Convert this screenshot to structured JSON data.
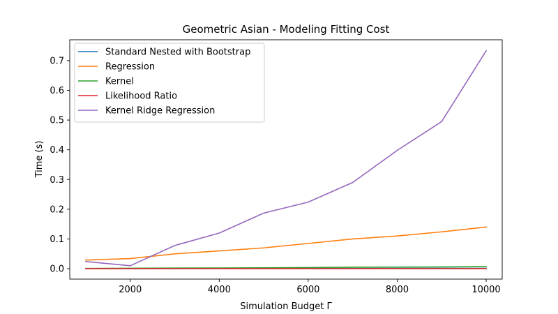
{
  "chart_data": {
    "type": "line",
    "title": "Geometric Asian - Modeling Fitting Cost",
    "xlabel": "Simulation Budget Γ",
    "ylabel": "Time (s)",
    "xlim": [
      640,
      10360
    ],
    "ylim": [
      -0.035,
      0.77
    ],
    "xticks": [
      2000,
      4000,
      6000,
      8000,
      10000
    ],
    "yticks": [
      0.0,
      0.1,
      0.2,
      0.3,
      0.4,
      0.5,
      0.6,
      0.7
    ],
    "xtick_labels": [
      "2000",
      "4000",
      "6000",
      "8000",
      "10000"
    ],
    "ytick_labels": [
      "0.0",
      "0.1",
      "0.2",
      "0.3",
      "0.4",
      "0.5",
      "0.6",
      "0.7"
    ],
    "grid": false,
    "legend_position": "top-left",
    "x": [
      1000,
      2000,
      3000,
      4000,
      5000,
      6000,
      7000,
      8000,
      9000,
      10000
    ],
    "series": [
      {
        "name": "Standard Nested with Bootstrap",
        "color": "#1f77b4",
        "values": [
          0.0005,
          0.0006,
          0.0007,
          0.0008,
          0.0009,
          0.001,
          0.0011,
          0.0012,
          0.0013,
          0.0014
        ]
      },
      {
        "name": "Regression",
        "color": "#ff7f0e",
        "values": [
          0.029,
          0.034,
          0.05,
          0.06,
          0.07,
          0.085,
          0.1,
          0.11,
          0.124,
          0.14
        ]
      },
      {
        "name": "Kernel",
        "color": "#2ca02c",
        "values": [
          0.001,
          0.0015,
          0.002,
          0.0025,
          0.003,
          0.004,
          0.005,
          0.0055,
          0.006,
          0.007
        ]
      },
      {
        "name": "Likelihood Ratio",
        "color": "#d62728",
        "values": [
          0.0003,
          0.0003,
          0.0003,
          0.0003,
          0.0003,
          0.0003,
          0.0003,
          0.0003,
          0.0003,
          0.0003
        ]
      },
      {
        "name": "Kernel Ridge Regression",
        "color": "#9467bd",
        "values": [
          0.024,
          0.01,
          0.078,
          0.12,
          0.187,
          0.224,
          0.29,
          0.398,
          0.495,
          0.733
        ]
      }
    ]
  }
}
